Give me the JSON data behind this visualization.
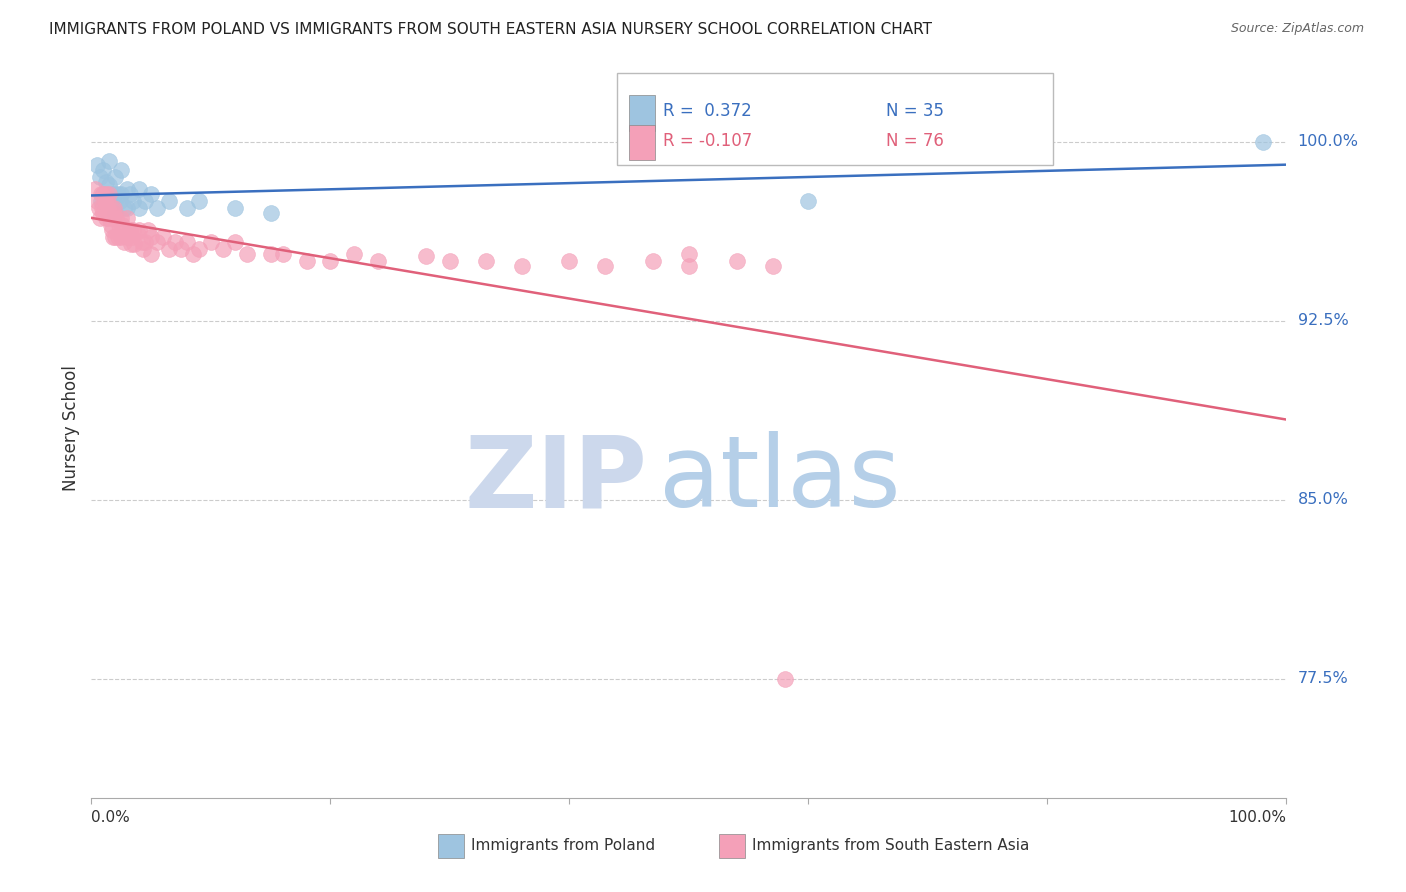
{
  "title": "IMMIGRANTS FROM POLAND VS IMMIGRANTS FROM SOUTH EASTERN ASIA NURSERY SCHOOL CORRELATION CHART",
  "source": "Source: ZipAtlas.com",
  "ylabel": "Nursery School",
  "ytick_labels": [
    "77.5%",
    "85.0%",
    "92.5%",
    "100.0%"
  ],
  "ytick_values": [
    0.775,
    0.85,
    0.925,
    1.0
  ],
  "xmin": 0.0,
  "xmax": 1.0,
  "ymin": 0.725,
  "ymax": 1.035,
  "legend_blue_r": "R =  0.372",
  "legend_blue_n": "N = 35",
  "legend_pink_r": "R = -0.107",
  "legend_pink_n": "N = 76",
  "blue_color": "#9ec4e0",
  "pink_color": "#f4a0b8",
  "blue_line_color": "#3a6fbf",
  "pink_line_color": "#e0607a",
  "blue_label": "Immigrants from Poland",
  "pink_label": "Immigrants from South Eastern Asia",
  "poland_x": [
    0.005,
    0.007,
    0.008,
    0.01,
    0.01,
    0.012,
    0.013,
    0.015,
    0.015,
    0.016,
    0.018,
    0.02,
    0.02,
    0.02,
    0.022,
    0.024,
    0.025,
    0.025,
    0.027,
    0.03,
    0.03,
    0.032,
    0.035,
    0.04,
    0.04,
    0.045,
    0.05,
    0.055,
    0.065,
    0.08,
    0.09,
    0.12,
    0.15,
    0.6,
    0.98
  ],
  "poland_y": [
    0.99,
    0.985,
    0.975,
    0.988,
    0.978,
    0.983,
    0.975,
    0.992,
    0.982,
    0.975,
    0.978,
    0.985,
    0.978,
    0.97,
    0.978,
    0.975,
    0.988,
    0.978,
    0.972,
    0.98,
    0.972,
    0.978,
    0.975,
    0.98,
    0.972,
    0.975,
    0.978,
    0.972,
    0.975,
    0.972,
    0.975,
    0.972,
    0.97,
    0.975,
    1.0
  ],
  "sea_x": [
    0.003,
    0.005,
    0.006,
    0.007,
    0.008,
    0.009,
    0.01,
    0.01,
    0.011,
    0.012,
    0.012,
    0.013,
    0.014,
    0.015,
    0.015,
    0.016,
    0.017,
    0.017,
    0.018,
    0.018,
    0.019,
    0.02,
    0.02,
    0.021,
    0.022,
    0.023,
    0.025,
    0.025,
    0.026,
    0.027,
    0.028,
    0.03,
    0.03,
    0.032,
    0.033,
    0.034,
    0.035,
    0.036,
    0.038,
    0.04,
    0.042,
    0.043,
    0.045,
    0.047,
    0.05,
    0.05,
    0.055,
    0.06,
    0.065,
    0.07,
    0.075,
    0.08,
    0.085,
    0.09,
    0.1,
    0.11,
    0.12,
    0.13,
    0.15,
    0.16,
    0.18,
    0.2,
    0.22,
    0.24,
    0.28,
    0.3,
    0.33,
    0.36,
    0.4,
    0.43,
    0.47,
    0.5,
    0.5,
    0.54,
    0.57,
    0.58
  ],
  "sea_y": [
    0.98,
    0.975,
    0.972,
    0.968,
    0.978,
    0.972,
    0.978,
    0.97,
    0.975,
    0.968,
    0.978,
    0.975,
    0.972,
    0.978,
    0.968,
    0.965,
    0.972,
    0.963,
    0.97,
    0.96,
    0.972,
    0.968,
    0.96,
    0.968,
    0.96,
    0.965,
    0.968,
    0.96,
    0.965,
    0.958,
    0.963,
    0.968,
    0.96,
    0.963,
    0.957,
    0.96,
    0.963,
    0.957,
    0.962,
    0.963,
    0.958,
    0.955,
    0.958,
    0.963,
    0.96,
    0.953,
    0.958,
    0.96,
    0.955,
    0.958,
    0.955,
    0.958,
    0.953,
    0.955,
    0.958,
    0.955,
    0.958,
    0.953,
    0.953,
    0.953,
    0.95,
    0.95,
    0.953,
    0.95,
    0.952,
    0.95,
    0.95,
    0.948,
    0.95,
    0.948,
    0.95,
    0.953,
    0.948,
    0.95,
    0.948,
    0.775
  ]
}
